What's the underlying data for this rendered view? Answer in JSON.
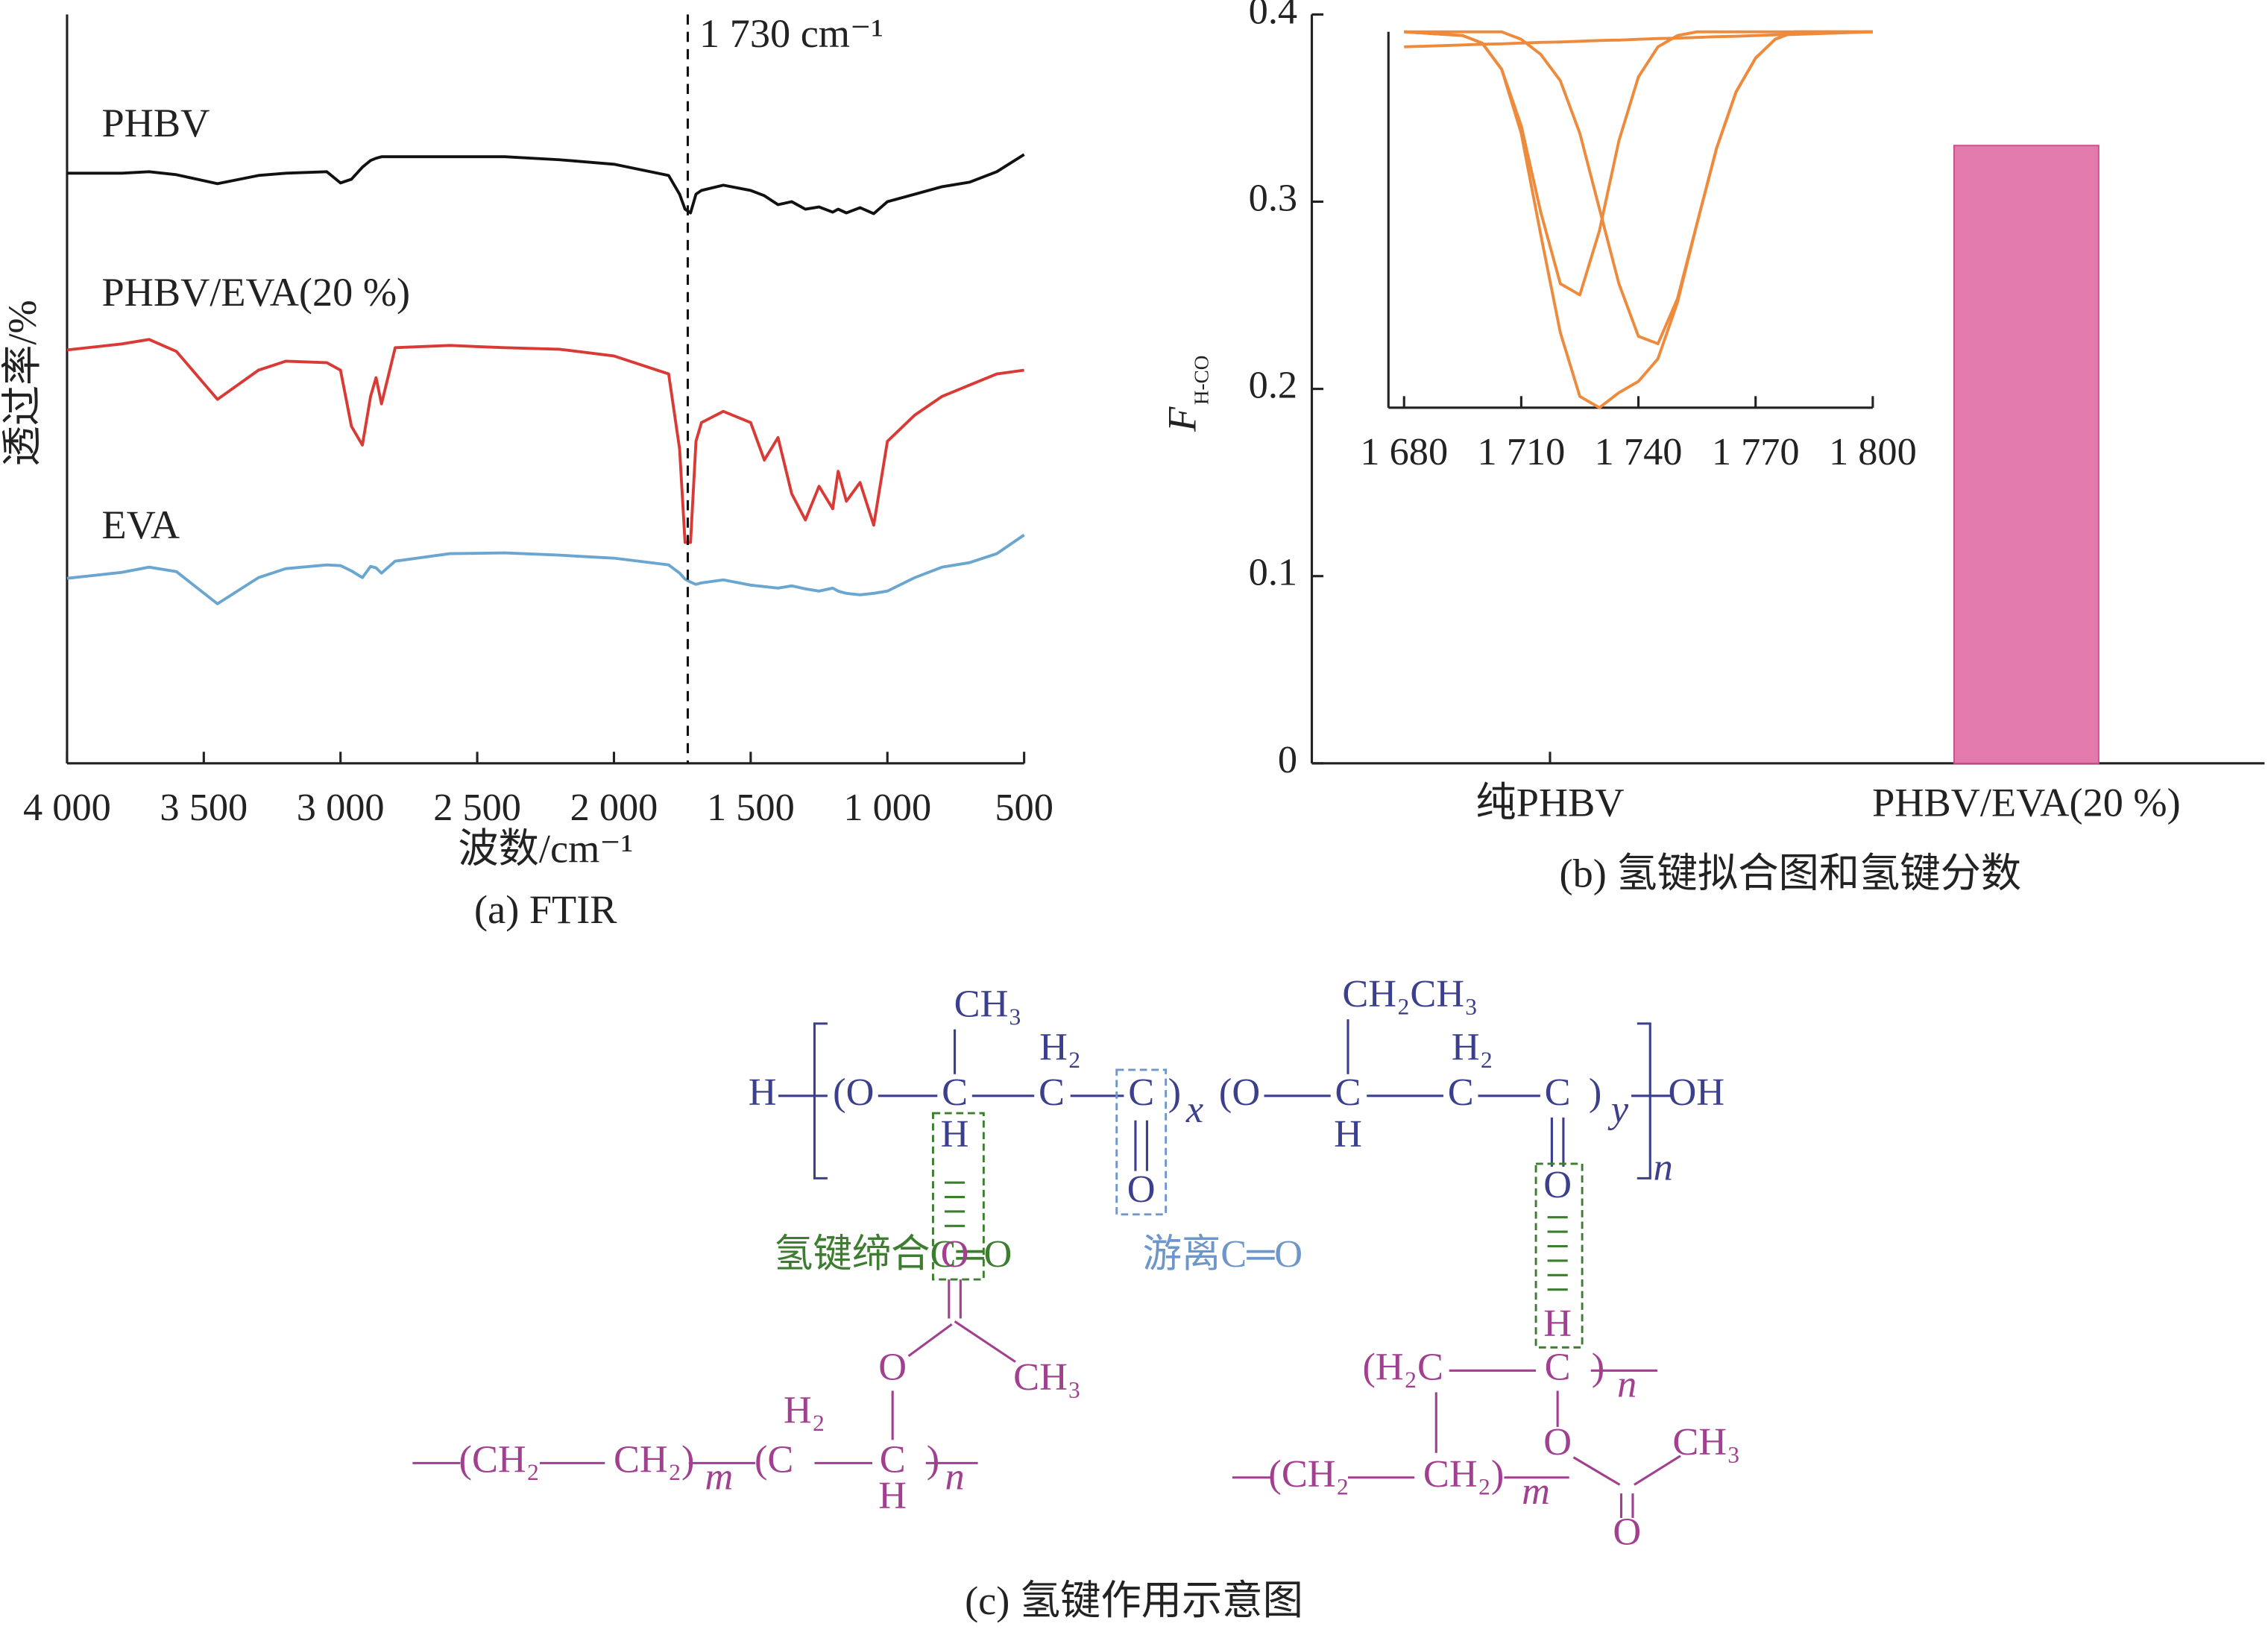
{
  "chart_data": [
    {
      "type": "line",
      "caption": "(a) FTIR",
      "xlabel": "波数/cm⁻¹",
      "ylabel": "透过率/%",
      "annotation": "1 730 cm⁻¹",
      "vline": 1730,
      "xlim": [
        4000,
        500
      ],
      "xticks": [
        {
          "value": 4000,
          "label": "4 000"
        },
        {
          "value": 3500,
          "label": "3 500"
        },
        {
          "value": 3000,
          "label": "3 000"
        },
        {
          "value": 2500,
          "label": "2 500"
        },
        {
          "value": 2000,
          "label": "2 000"
        },
        {
          "value": 1500,
          "label": "1 500"
        },
        {
          "value": 1000,
          "label": "1 000"
        },
        500
      ],
      "ylim": [
        0,
        100
      ],
      "x": [
        4000,
        3800,
        3700,
        3600,
        3450,
        3300,
        3200,
        3050,
        3000,
        2960,
        2920,
        2890,
        2870,
        2850,
        2800,
        2600,
        2400,
        2200,
        2000,
        1800,
        1760,
        1740,
        1720,
        1700,
        1680,
        1600,
        1500,
        1450,
        1400,
        1350,
        1300,
        1250,
        1200,
        1180,
        1150,
        1100,
        1050,
        1000,
        900,
        800,
        700,
        600,
        500
      ],
      "series": [
        {
          "name": "PHBV",
          "color": "#111111",
          "values": [
            78.8,
            78.8,
            79,
            78.6,
            77.4,
            78.5,
            78.8,
            79,
            77.5,
            78,
            79.6,
            80.5,
            80.8,
            81,
            81,
            81,
            81,
            80.6,
            80,
            78.5,
            76,
            74,
            73.5,
            76,
            76.5,
            77.2,
            76.5,
            75.8,
            74.6,
            75,
            74,
            74.3,
            73.6,
            74,
            73.5,
            74.2,
            73.4,
            75,
            76,
            77,
            77.6,
            79,
            81.3
          ]
        },
        {
          "name": "PHBV/EVA(20 %)",
          "color": "#d93a35",
          "values": [
            55.2,
            56,
            56.6,
            55,
            48.6,
            52.5,
            53.7,
            53.5,
            52.5,
            45,
            42.5,
            49,
            51.5,
            48,
            55.5,
            55.8,
            55.5,
            55.3,
            54.4,
            52,
            42,
            29.5,
            29.5,
            43,
            45.5,
            47,
            45.5,
            40.5,
            43.5,
            36,
            32.5,
            37,
            34,
            39,
            35,
            37.5,
            31.8,
            43,
            46.5,
            49,
            50.5,
            52,
            52.5
          ]
        },
        {
          "name": "EVA",
          "color": "#6aa6d0",
          "values": [
            24.7,
            25.5,
            26.2,
            25.6,
            21.3,
            24.8,
            26,
            26.5,
            26.4,
            25.7,
            24.8,
            26.3,
            26.1,
            25.4,
            27,
            28,
            28.1,
            27.8,
            27.4,
            26.5,
            25.4,
            24.6,
            24.2,
            23.9,
            24.1,
            24.5,
            23.8,
            23.6,
            23.4,
            23.7,
            23.3,
            23,
            23.4,
            23,
            22.7,
            22.5,
            22.7,
            23,
            24.8,
            26.2,
            26.8,
            28,
            30.5
          ]
        }
      ]
    },
    {
      "type": "bar",
      "caption": "(b) 氢键拟合图和氢键分数",
      "ylabel": "F",
      "ylabel_sub": "H-CO",
      "categories": [
        "纯PHBV",
        "PHBV/EVA(20 %)"
      ],
      "values": [
        null,
        0.33
      ],
      "color": "#e27aab",
      "ylim": [
        0,
        0.4
      ],
      "yticks": [
        0,
        0.1,
        0.2,
        0.3,
        0.4
      ]
    },
    {
      "type": "line",
      "xlim": [
        1676,
        1800
      ],
      "xticks": [
        {
          "value": 1680,
          "label": "1 680"
        },
        {
          "value": 1710,
          "label": "1 710"
        },
        {
          "value": 1740,
          "label": "1 740"
        },
        {
          "value": 1770,
          "label": "1 770"
        },
        {
          "value": 1800,
          "label": "1 800"
        }
      ],
      "ylim": [
        0,
        1
      ],
      "x": [
        1680,
        1695,
        1700,
        1705,
        1710,
        1715,
        1720,
        1725,
        1730,
        1735,
        1740,
        1745,
        1750,
        1755,
        1760,
        1765,
        1770,
        1775,
        1780,
        1800
      ],
      "series": [
        {
          "color": "#ee8a3c",
          "values": [
            1.0,
            0.99,
            0.97,
            0.9,
            0.75,
            0.52,
            0.33,
            0.3,
            0.47,
            0.71,
            0.88,
            0.96,
            0.99,
            1.0,
            1.0,
            1.0,
            1.0,
            1.0,
            1.0,
            1.0
          ]
        },
        {
          "color": "#ee8a3c",
          "values": [
            1.0,
            1.0,
            1.0,
            1.0,
            0.98,
            0.94,
            0.87,
            0.73,
            0.53,
            0.33,
            0.19,
            0.17,
            0.29,
            0.49,
            0.69,
            0.84,
            0.93,
            0.98,
            1.0,
            1.0
          ]
        },
        {
          "color": "#ee8a3c",
          "values": [
            1.0,
            0.99,
            0.97,
            0.9,
            0.73,
            0.46,
            0.2,
            0.03,
            0.0,
            0.04,
            0.07,
            0.13,
            0.28,
            0.49,
            0.69,
            0.84,
            0.93,
            0.98,
            1.0,
            1.0
          ]
        },
        {
          "color": "#ee8a3c",
          "values": [
            0.96,
            0.965,
            0.967,
            0.968,
            0.97,
            0.972,
            0.973,
            0.975,
            0.977,
            0.978,
            0.98,
            0.982,
            0.983,
            0.985,
            0.987,
            0.988,
            0.99,
            0.992,
            0.993,
            1.0
          ]
        }
      ]
    }
  ],
  "diagram": {
    "caption": "(c) 氢键作用示意图",
    "labels": [
      "H",
      "(O",
      "C",
      "C",
      "C",
      ")",
      "x",
      "(O",
      "C",
      "C",
      "C",
      ")",
      "y",
      "OH",
      "n",
      "CH₃",
      "H₂",
      "H",
      "O",
      "CH₂CH₃",
      "H₂",
      "H",
      "O",
      "氢键缔合C═O",
      "游离C═O",
      "O",
      "O",
      "CH₃",
      "(CH₂",
      "CH₂)",
      "m",
      "(C",
      "H₂",
      "C",
      "H",
      ")",
      "n",
      "(H₂C",
      "C",
      ")",
      "n",
      "H",
      "O",
      "CH₃",
      "(CH₂",
      "CH₂)",
      "m",
      "O"
    ]
  }
}
